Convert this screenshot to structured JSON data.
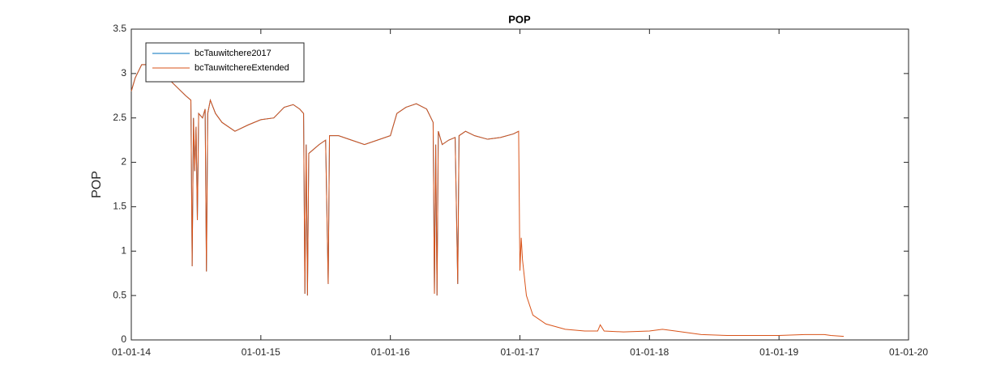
{
  "chart_data": {
    "type": "line",
    "title": "POP",
    "y_label": "POP",
    "x": [
      2014.0,
      2014.03,
      2014.08,
      2014.15,
      2014.22,
      2014.28,
      2014.35,
      2014.42,
      2014.46,
      2014.47,
      2014.48,
      2014.49,
      2014.5,
      2014.51,
      2014.52,
      2014.55,
      2014.57,
      2014.58,
      2014.59,
      2014.61,
      2014.65,
      2014.7,
      2014.8,
      2014.9,
      2015.0,
      2015.1,
      2015.18,
      2015.25,
      2015.3,
      2015.33,
      2015.34,
      2015.35,
      2015.36,
      2015.37,
      2015.45,
      2015.5,
      2015.52,
      2015.53,
      2015.6,
      2015.7,
      2015.8,
      2015.9,
      2016.0,
      2016.05,
      2016.12,
      2016.2,
      2016.28,
      2016.33,
      2016.34,
      2016.35,
      2016.36,
      2016.37,
      2016.4,
      2016.45,
      2016.5,
      2016.52,
      2016.53,
      2016.58,
      2016.65,
      2016.75,
      2016.85,
      2016.95,
      2016.99,
      2017.0,
      2017.01,
      2017.02,
      2017.05,
      2017.1,
      2017.2,
      2017.35,
      2017.5,
      2017.6,
      2017.62,
      2017.65,
      2017.8,
      2018.0,
      2018.1,
      2018.2,
      2018.4,
      2018.6,
      2018.8,
      2019.0,
      2019.2,
      2019.35,
      2019.4,
      2019.5
    ],
    "series": [
      {
        "name": "bcTauwitchere2017",
        "color": "#0072bd",
        "values": [
          2.8,
          2.95,
          3.1,
          3.1,
          3.0,
          2.95,
          2.85,
          2.75,
          2.7,
          0.83,
          2.5,
          1.9,
          2.4,
          1.35,
          2.55,
          2.5,
          2.6,
          0.77,
          2.55,
          2.7,
          2.55,
          2.45,
          2.35,
          2.42,
          2.48,
          2.5,
          2.62,
          2.65,
          2.6,
          2.55,
          0.52,
          2.2,
          0.5,
          2.1,
          2.2,
          2.25,
          0.63,
          2.3,
          2.3,
          2.25,
          2.2,
          2.25,
          2.3,
          2.55,
          2.62,
          2.66,
          2.6,
          2.45,
          0.52,
          2.2,
          0.5,
          2.35,
          2.2,
          2.25,
          2.28,
          0.63,
          2.3,
          2.35,
          2.3,
          2.26,
          2.28,
          2.32,
          2.35,
          null,
          null,
          null,
          null,
          null,
          null,
          null,
          null,
          null,
          null,
          null,
          null,
          null,
          null,
          null,
          null,
          null,
          null,
          null,
          null,
          null,
          null,
          null
        ]
      },
      {
        "name": "bcTauwitchereExtended",
        "color": "#d95319",
        "values": [
          2.8,
          2.95,
          3.1,
          3.1,
          3.0,
          2.95,
          2.85,
          2.75,
          2.7,
          0.83,
          2.5,
          1.9,
          2.4,
          1.35,
          2.55,
          2.5,
          2.6,
          0.77,
          2.55,
          2.7,
          2.55,
          2.45,
          2.35,
          2.42,
          2.48,
          2.5,
          2.62,
          2.65,
          2.6,
          2.55,
          0.52,
          2.2,
          0.5,
          2.1,
          2.2,
          2.25,
          0.63,
          2.3,
          2.3,
          2.25,
          2.2,
          2.25,
          2.3,
          2.55,
          2.62,
          2.66,
          2.6,
          2.45,
          0.52,
          2.2,
          0.5,
          2.35,
          2.2,
          2.25,
          2.28,
          0.63,
          2.3,
          2.35,
          2.3,
          2.26,
          2.28,
          2.32,
          2.35,
          0.78,
          1.15,
          0.9,
          0.5,
          0.28,
          0.18,
          0.12,
          0.1,
          0.1,
          0.17,
          0.1,
          0.09,
          0.1,
          0.12,
          0.1,
          0.06,
          0.05,
          0.05,
          0.05,
          0.06,
          0.06,
          0.05,
          0.04
        ]
      }
    ],
    "xlim": [
      2014,
      2020
    ],
    "xticks": [
      {
        "value": 2014,
        "label": "01-01-14"
      },
      {
        "value": 2015,
        "label": "01-01-15"
      },
      {
        "value": 2016,
        "label": "01-01-16"
      },
      {
        "value": 2017,
        "label": "01-01-17"
      },
      {
        "value": 2018,
        "label": "01-01-18"
      },
      {
        "value": 2019,
        "label": "01-01-19"
      },
      {
        "value": 2020,
        "label": "01-01-20"
      }
    ],
    "ylim": [
      0,
      3.5
    ],
    "yticks": [
      0,
      0.5,
      1,
      1.5,
      2,
      2.5,
      3,
      3.5
    ],
    "grid": false,
    "legend": "upper left"
  }
}
